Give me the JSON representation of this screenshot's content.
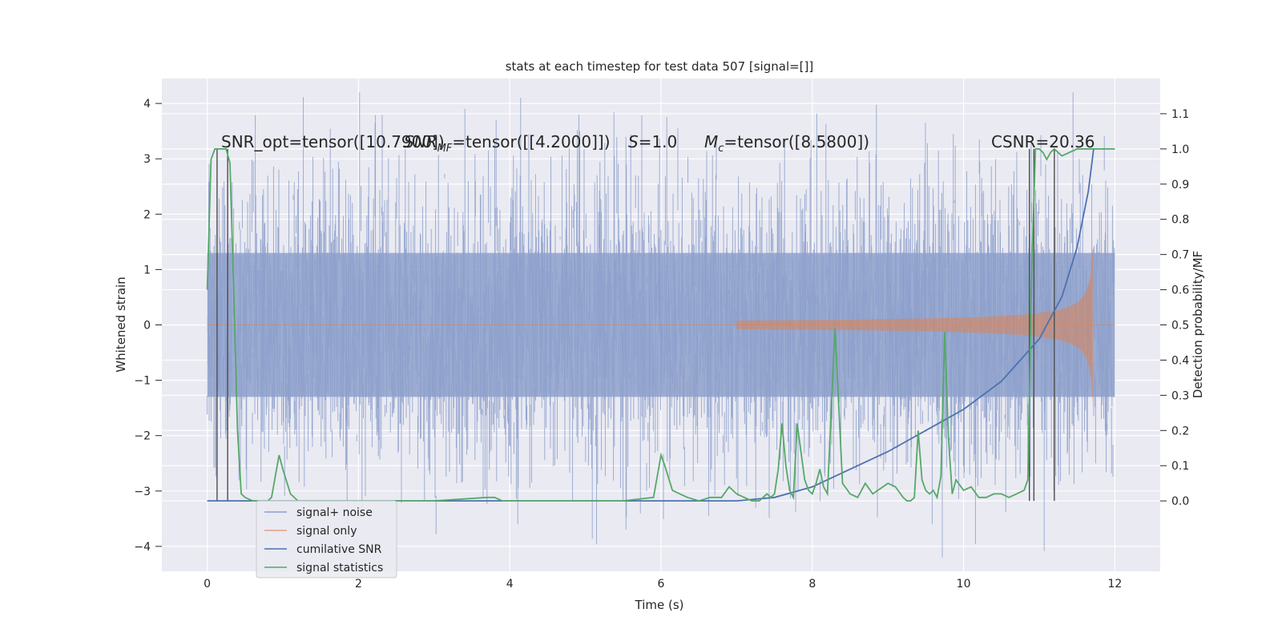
{
  "chart_data": {
    "type": "line",
    "title": "stats at each timestep for test data 507 [signal=[]]",
    "xlabel": "Time (s)",
    "ylabel": "Whitened strain",
    "ylabel_right": "Detection probability/MF",
    "xlim": [
      -0.6,
      12.6
    ],
    "ylim": [
      -4.45,
      4.45
    ],
    "ylim_right": [
      -0.2,
      1.2
    ],
    "xticks": [
      0,
      2,
      4,
      6,
      8,
      10,
      12
    ],
    "xtick_labels": [
      "0",
      "2",
      "4",
      "6",
      "8",
      "10",
      "12"
    ],
    "yticks": [
      -4,
      -3,
      -2,
      -1,
      0,
      1,
      2,
      3,
      4
    ],
    "ytick_labels": [
      "−4",
      "−3",
      "−2",
      "−1",
      "0",
      "1",
      "2",
      "3",
      "4"
    ],
    "yticks_right": [
      0.0,
      0.1,
      0.2,
      0.3,
      0.4,
      0.5,
      0.6,
      0.7,
      0.8,
      0.9,
      1.0,
      1.1
    ],
    "ytick_right_labels": [
      "0.0",
      "0.1",
      "0.2",
      "0.3",
      "0.4",
      "0.5",
      "0.6",
      "0.7",
      "0.8",
      "0.9",
      "1.0",
      "1.1"
    ],
    "grid": true,
    "legend_position": "lower-left",
    "annotations": [
      "SNR_opt=tensor([10.7900])",
      "SNR",
      "MF",
      "=tensor([[4.2000]])",
      "S",
      "=1.0",
      "M",
      "c",
      "=tensor([8.5800])",
      "CSNR=20.36"
    ],
    "series": [
      {
        "name": "signal+ noise",
        "axis": "left",
        "color": "#8da0cb",
        "description_values": "dense white-noise band roughly within ±2.5 with spikes to ±4, spanning t=0 to 12"
      },
      {
        "name": "signal only",
        "axis": "left",
        "color": "#dd8452",
        "chirp_start": 7.0,
        "chirp_end": 11.72,
        "peak_amplitude": 1.9
      },
      {
        "name": "cumilative SNR",
        "axis": "right",
        "color": "#4c72b0",
        "x": [
          0,
          6.5,
          7.0,
          7.5,
          8.0,
          8.5,
          9.0,
          9.5,
          10.0,
          10.5,
          11.0,
          11.3,
          11.5,
          11.65,
          11.72
        ],
        "values": [
          0.0,
          0.0,
          0.0,
          0.01,
          0.04,
          0.09,
          0.14,
          0.2,
          0.26,
          0.34,
          0.46,
          0.58,
          0.72,
          0.88,
          1.0
        ]
      },
      {
        "name": "signal statistics",
        "axis": "right",
        "color": "#55a868",
        "x": [
          0.0,
          0.05,
          0.1,
          0.15,
          0.2,
          0.25,
          0.3,
          0.35,
          0.4,
          0.45,
          0.5,
          0.6,
          0.7,
          0.8,
          0.85,
          0.95,
          1.0,
          1.1,
          1.2,
          1.4,
          2.0,
          3.0,
          3.7,
          3.8,
          3.9,
          4.0,
          5.0,
          5.5,
          5.9,
          6.0,
          6.05,
          6.15,
          6.25,
          6.35,
          6.5,
          6.65,
          6.8,
          6.9,
          7.0,
          7.1,
          7.2,
          7.3,
          7.4,
          7.45,
          7.5,
          7.55,
          7.6,
          7.65,
          7.7,
          7.75,
          7.8,
          7.9,
          7.95,
          8.0,
          8.05,
          8.1,
          8.15,
          8.2,
          8.3,
          8.4,
          8.5,
          8.6,
          8.7,
          8.8,
          9.0,
          9.1,
          9.2,
          9.25,
          9.3,
          9.35,
          9.4,
          9.45,
          9.5,
          9.55,
          9.6,
          9.65,
          9.7,
          9.75,
          9.8,
          9.85,
          9.9,
          10.0,
          10.1,
          10.2,
          10.3,
          10.4,
          10.5,
          10.6,
          10.7,
          10.8,
          10.85,
          10.9,
          10.95,
          11.0,
          11.05,
          11.1,
          11.15,
          11.2,
          11.3,
          11.5,
          11.7,
          12.0
        ],
        "values": [
          0.6,
          0.97,
          1.0,
          1.0,
          1.0,
          1.0,
          0.96,
          0.6,
          0.2,
          0.02,
          0.01,
          0.0,
          0.0,
          0.0,
          0.01,
          0.13,
          0.09,
          0.02,
          0.0,
          0.0,
          0.0,
          0.0,
          0.01,
          0.01,
          0.0,
          0.0,
          0.0,
          0.0,
          0.01,
          0.13,
          0.1,
          0.03,
          0.02,
          0.01,
          0.0,
          0.01,
          0.01,
          0.04,
          0.02,
          0.01,
          0.0,
          0.0,
          0.02,
          0.01,
          0.02,
          0.09,
          0.22,
          0.1,
          0.03,
          0.01,
          0.22,
          0.06,
          0.03,
          0.02,
          0.05,
          0.09,
          0.04,
          0.02,
          0.49,
          0.05,
          0.02,
          0.01,
          0.05,
          0.02,
          0.05,
          0.04,
          0.01,
          0.0,
          0.0,
          0.01,
          0.2,
          0.06,
          0.03,
          0.02,
          0.03,
          0.01,
          0.07,
          0.48,
          0.18,
          0.02,
          0.06,
          0.03,
          0.04,
          0.01,
          0.01,
          0.02,
          0.02,
          0.01,
          0.02,
          0.03,
          0.06,
          0.65,
          1.0,
          1.0,
          0.99,
          0.97,
          0.99,
          1.0,
          0.98,
          1.0,
          1.0,
          1.0
        ]
      }
    ],
    "vertical_markers_x": [
      0.13,
      0.27,
      10.87,
      10.93,
      11.2
    ]
  }
}
